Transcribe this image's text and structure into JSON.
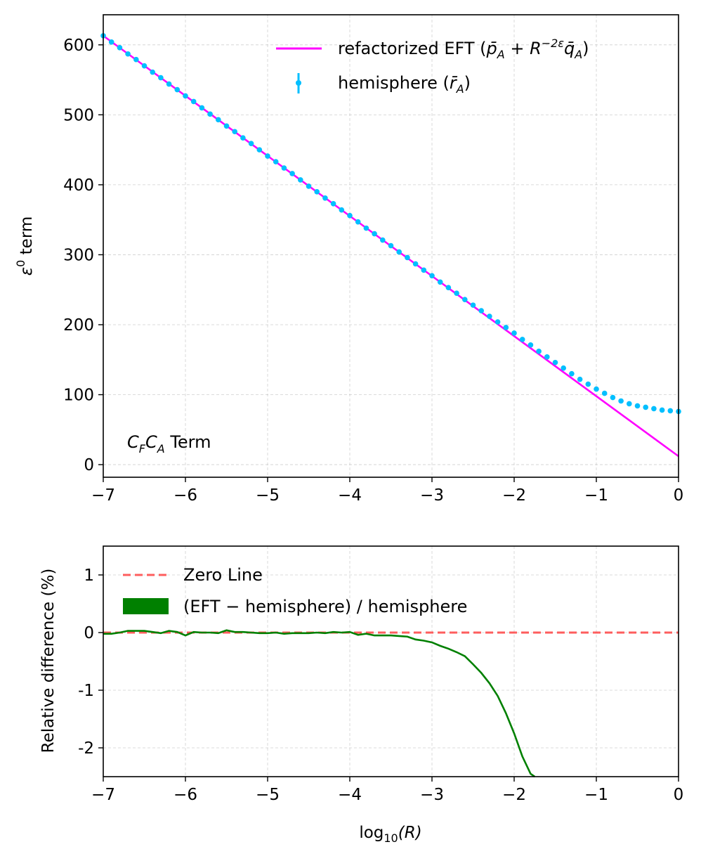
{
  "chart_data": [
    {
      "type": "line",
      "ylabel_prefix": "ε",
      "ylabel_sup": "0",
      "ylabel_suffix": " term",
      "xlim": [
        -7,
        0
      ],
      "ylim": [
        -18,
        643
      ],
      "xticks": [
        -7,
        -6,
        -5,
        -4,
        -3,
        -2,
        -1,
        0
      ],
      "xtick_labels": [
        "−7",
        "−6",
        "−5",
        "−4",
        "−3",
        "−2",
        "−1",
        "0"
      ],
      "yticks": [
        0,
        100,
        200,
        300,
        400,
        500,
        600
      ],
      "ytick_labels": [
        "0",
        "100",
        "200",
        "300",
        "400",
        "500",
        "600"
      ],
      "grid": true,
      "legend_position": "top-right",
      "annotation": {
        "c1": "C",
        "c1_sub": "F",
        "c2": "C",
        "c2_sub": "A",
        "rest": " Term"
      },
      "series": [
        {
          "name": "refactorized EFT (p̄A + R−2εq̄A)",
          "legend_main": "refactorized EFT (",
          "legend_p": "p̄",
          "legend_p_sub": "A",
          "legend_plus": " + R",
          "legend_exp": "−2ε",
          "legend_q": "q̄",
          "legend_q_sub": "A",
          "legend_close": ")",
          "style": "line",
          "color": "#ff00ff",
          "x": [
            -7,
            0
          ],
          "y": [
            613,
            12
          ]
        },
        {
          "name": "hemisphere (r̄A)",
          "legend_main": "hemisphere (",
          "legend_r": "r̄",
          "legend_r_sub": "A",
          "legend_close": ")",
          "style": "points",
          "color": "#00bfff",
          "x": [
            -7.0,
            -6.9,
            -6.8,
            -6.7,
            -6.6,
            -6.5,
            -6.4,
            -6.3,
            -6.2,
            -6.1,
            -6.0,
            -5.9,
            -5.8,
            -5.7,
            -5.6,
            -5.5,
            -5.4,
            -5.3,
            -5.2,
            -5.1,
            -5.0,
            -4.9,
            -4.8,
            -4.7,
            -4.6,
            -4.5,
            -4.4,
            -4.3,
            -4.2,
            -4.1,
            -4.0,
            -3.9,
            -3.8,
            -3.7,
            -3.6,
            -3.5,
            -3.4,
            -3.3,
            -3.2,
            -3.1,
            -3.0,
            -2.9,
            -2.8,
            -2.7,
            -2.6,
            -2.5,
            -2.4,
            -2.3,
            -2.2,
            -2.1,
            -2.0,
            -1.9,
            -1.8,
            -1.7,
            -1.6,
            -1.5,
            -1.4,
            -1.3,
            -1.2,
            -1.1,
            -1.0,
            -0.9,
            -0.8,
            -0.7,
            -0.6,
            -0.5,
            -0.4,
            -0.3,
            -0.2,
            -0.1,
            0.0
          ],
          "y": [
            613,
            604,
            596,
            587,
            579,
            570,
            561,
            553,
            544,
            536,
            527,
            519,
            510,
            501,
            493,
            484,
            476,
            467,
            459,
            450,
            441,
            433,
            424,
            416,
            407,
            398,
            390,
            381,
            373,
            364,
            356,
            347,
            338,
            330,
            321,
            313,
            304,
            296,
            287,
            278,
            270,
            261,
            253,
            245,
            236,
            228,
            220,
            212,
            204,
            196,
            188,
            179,
            171,
            162,
            154,
            146,
            138,
            130,
            122,
            115,
            108,
            102,
            96,
            91,
            87,
            84,
            82,
            80,
            78,
            77,
            76
          ]
        }
      ]
    },
    {
      "type": "line",
      "xlabel_main": "log",
      "xlabel_sub": "10",
      "xlabel_arg": "(R)",
      "ylabel": "Relative difference (%)",
      "xlim": [
        -7,
        0
      ],
      "ylim": [
        -2.5,
        1.5
      ],
      "xticks": [
        -7,
        -6,
        -5,
        -4,
        -3,
        -2,
        -1,
        0
      ],
      "xtick_labels": [
        "−7",
        "−6",
        "−5",
        "−4",
        "−3",
        "−2",
        "−1",
        "0"
      ],
      "yticks": [
        1,
        0,
        -1,
        -2
      ],
      "ytick_labels": [
        "1",
        "0",
        "-1",
        "-2"
      ],
      "grid": true,
      "legend_position": "top-left",
      "series": [
        {
          "name": "Zero Line",
          "style": "dashed",
          "color": "#ff4444",
          "x": [
            -7,
            0
          ],
          "y": [
            0,
            0
          ]
        },
        {
          "name": "(EFT − hemisphere) / hemisphere",
          "style": "line",
          "color": "#008000",
          "x": [
            -7.0,
            -6.9,
            -6.8,
            -6.7,
            -6.6,
            -6.5,
            -6.4,
            -6.3,
            -6.2,
            -6.1,
            -6.0,
            -5.9,
            -5.8,
            -5.7,
            -5.6,
            -5.5,
            -5.4,
            -5.3,
            -5.2,
            -5.1,
            -5.0,
            -4.9,
            -4.8,
            -4.7,
            -4.6,
            -4.5,
            -4.4,
            -4.3,
            -4.2,
            -4.1,
            -4.0,
            -3.9,
            -3.8,
            -3.7,
            -3.6,
            -3.5,
            -3.4,
            -3.3,
            -3.2,
            -3.1,
            -3.0,
            -2.9,
            -2.8,
            -2.7,
            -2.6,
            -2.5,
            -2.4,
            -2.3,
            -2.2,
            -2.1,
            -2.0,
            -1.9,
            -1.8,
            -1.75
          ],
          "y": [
            -0.02,
            -0.02,
            0.0,
            0.03,
            0.03,
            0.03,
            0.01,
            -0.01,
            0.03,
            0.01,
            -0.05,
            0.01,
            0.0,
            0.0,
            -0.01,
            0.04,
            0.01,
            0.01,
            0.0,
            -0.01,
            -0.01,
            0.0,
            -0.02,
            -0.01,
            -0.01,
            -0.01,
            0.0,
            -0.01,
            0.01,
            0.0,
            0.01,
            -0.04,
            -0.02,
            -0.05,
            -0.05,
            -0.05,
            -0.06,
            -0.07,
            -0.12,
            -0.14,
            -0.17,
            -0.23,
            -0.28,
            -0.34,
            -0.41,
            -0.55,
            -0.7,
            -0.88,
            -1.1,
            -1.4,
            -1.75,
            -2.15,
            -2.45,
            -2.5
          ]
        }
      ]
    }
  ]
}
